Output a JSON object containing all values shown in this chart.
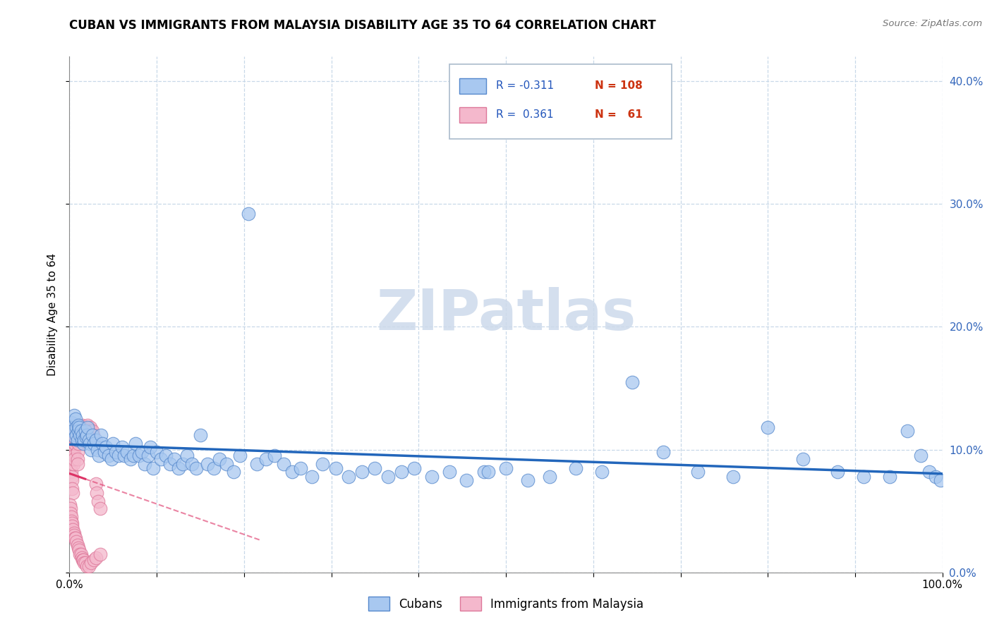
{
  "title": "CUBAN VS IMMIGRANTS FROM MALAYSIA DISABILITY AGE 35 TO 64 CORRELATION CHART",
  "source": "Source: ZipAtlas.com",
  "ylabel": "Disability Age 35 to 64",
  "xlim": [
    0,
    1.0
  ],
  "ylim": [
    0,
    0.42
  ],
  "xticks": [
    0.0,
    0.1,
    0.2,
    0.3,
    0.4,
    0.5,
    0.6,
    0.7,
    0.8,
    0.9,
    1.0
  ],
  "yticks": [
    0.0,
    0.1,
    0.2,
    0.3,
    0.4
  ],
  "cubans_color": "#a8c8f0",
  "malaysia_color": "#f4b8cc",
  "cubans_edge": "#5588cc",
  "malaysia_edge": "#dd7799",
  "trendline_cubans_color": "#2266bb",
  "trendline_malaysia_color": "#dd3366",
  "watermark_color": "#cddaeb",
  "R_cubans": -0.311,
  "N_cubans": 108,
  "R_malaysia": 0.361,
  "N_malaysia": 61,
  "legend_label_cubans": "Cubans",
  "legend_label_malaysia": "Immigrants from Malaysia",
  "cubans_x": [
    0.002,
    0.003,
    0.004,
    0.005,
    0.006,
    0.007,
    0.008,
    0.008,
    0.009,
    0.01,
    0.01,
    0.011,
    0.012,
    0.013,
    0.014,
    0.015,
    0.016,
    0.017,
    0.018,
    0.019,
    0.02,
    0.021,
    0.022,
    0.023,
    0.025,
    0.026,
    0.028,
    0.03,
    0.032,
    0.034,
    0.036,
    0.038,
    0.04,
    0.042,
    0.045,
    0.048,
    0.05,
    0.053,
    0.056,
    0.06,
    0.063,
    0.066,
    0.07,
    0.073,
    0.076,
    0.08,
    0.083,
    0.086,
    0.09,
    0.093,
    0.096,
    0.1,
    0.105,
    0.11,
    0.115,
    0.12,
    0.125,
    0.13,
    0.135,
    0.14,
    0.145,
    0.15,
    0.158,
    0.165,
    0.172,
    0.18,
    0.188,
    0.195,
    0.205,
    0.215,
    0.225,
    0.235,
    0.245,
    0.255,
    0.265,
    0.278,
    0.29,
    0.305,
    0.32,
    0.335,
    0.35,
    0.365,
    0.38,
    0.395,
    0.415,
    0.435,
    0.455,
    0.475,
    0.5,
    0.525,
    0.48,
    0.55,
    0.58,
    0.61,
    0.645,
    0.68,
    0.72,
    0.76,
    0.8,
    0.84,
    0.88,
    0.91,
    0.94,
    0.96,
    0.975,
    0.985,
    0.992,
    0.998
  ],
  "cubans_y": [
    0.122,
    0.118,
    0.115,
    0.128,
    0.11,
    0.125,
    0.118,
    0.112,
    0.108,
    0.12,
    0.115,
    0.118,
    0.112,
    0.115,
    0.108,
    0.112,
    0.105,
    0.108,
    0.115,
    0.11,
    0.112,
    0.118,
    0.108,
    0.105,
    0.1,
    0.112,
    0.105,
    0.108,
    0.1,
    0.095,
    0.112,
    0.105,
    0.098,
    0.102,
    0.095,
    0.092,
    0.105,
    0.098,
    0.095,
    0.102,
    0.095,
    0.098,
    0.092,
    0.095,
    0.105,
    0.095,
    0.098,
    0.088,
    0.095,
    0.102,
    0.085,
    0.098,
    0.092,
    0.095,
    0.088,
    0.092,
    0.085,
    0.088,
    0.095,
    0.088,
    0.085,
    0.112,
    0.088,
    0.085,
    0.092,
    0.088,
    0.082,
    0.095,
    0.292,
    0.088,
    0.092,
    0.095,
    0.088,
    0.082,
    0.085,
    0.078,
    0.088,
    0.085,
    0.078,
    0.082,
    0.085,
    0.078,
    0.082,
    0.085,
    0.078,
    0.082,
    0.075,
    0.082,
    0.085,
    0.075,
    0.082,
    0.078,
    0.085,
    0.082,
    0.155,
    0.098,
    0.082,
    0.078,
    0.118,
    0.092,
    0.082,
    0.078,
    0.078,
    0.115,
    0.095,
    0.082,
    0.078,
    0.075
  ],
  "malaysia_x": [
    0.0005,
    0.001,
    0.0015,
    0.002,
    0.002,
    0.0025,
    0.003,
    0.003,
    0.0035,
    0.004,
    0.004,
    0.0045,
    0.005,
    0.005,
    0.0055,
    0.006,
    0.006,
    0.0065,
    0.007,
    0.007,
    0.0075,
    0.008,
    0.008,
    0.0085,
    0.009,
    0.009,
    0.0095,
    0.01,
    0.01,
    0.0105,
    0.011,
    0.011,
    0.0115,
    0.012,
    0.012,
    0.013,
    0.013,
    0.014,
    0.014,
    0.015,
    0.015,
    0.016,
    0.016,
    0.017,
    0.017,
    0.018,
    0.019,
    0.02,
    0.02,
    0.021,
    0.022,
    0.023,
    0.024,
    0.025,
    0.026,
    0.027,
    0.028,
    0.03,
    0.031,
    0.033,
    0.035
  ],
  "malaysia_y": [
    0.108,
    0.098,
    0.092,
    0.088,
    0.082,
    0.078,
    0.075,
    0.068,
    0.065,
    0.095,
    0.092,
    0.088,
    0.098,
    0.095,
    0.092,
    0.112,
    0.105,
    0.118,
    0.112,
    0.108,
    0.115,
    0.12,
    0.115,
    0.118,
    0.098,
    0.092,
    0.088,
    0.11,
    0.105,
    0.112,
    0.108,
    0.115,
    0.115,
    0.118,
    0.112,
    0.118,
    0.112,
    0.12,
    0.115,
    0.118,
    0.112,
    0.115,
    0.11,
    0.112,
    0.115,
    0.118,
    0.115,
    0.118,
    0.112,
    0.12,
    0.115,
    0.112,
    0.118,
    0.115,
    0.115,
    0.112,
    0.108,
    0.072,
    0.065,
    0.058,
    0.052
  ],
  "malaysia_low_x": [
    0.0005,
    0.001,
    0.0015,
    0.002,
    0.002,
    0.0025,
    0.003,
    0.004,
    0.005,
    0.005,
    0.006,
    0.007,
    0.008,
    0.009,
    0.01,
    0.011,
    0.012,
    0.013,
    0.014,
    0.015,
    0.016,
    0.017,
    0.018,
    0.02,
    0.022,
    0.025,
    0.028,
    0.03,
    0.035
  ],
  "malaysia_low_y": [
    0.055,
    0.052,
    0.048,
    0.045,
    0.042,
    0.04,
    0.038,
    0.035,
    0.032,
    0.03,
    0.028,
    0.028,
    0.025,
    0.022,
    0.02,
    0.018,
    0.015,
    0.015,
    0.012,
    0.01,
    0.01,
    0.008,
    0.008,
    0.005,
    0.005,
    0.008,
    0.01,
    0.012,
    0.015
  ]
}
